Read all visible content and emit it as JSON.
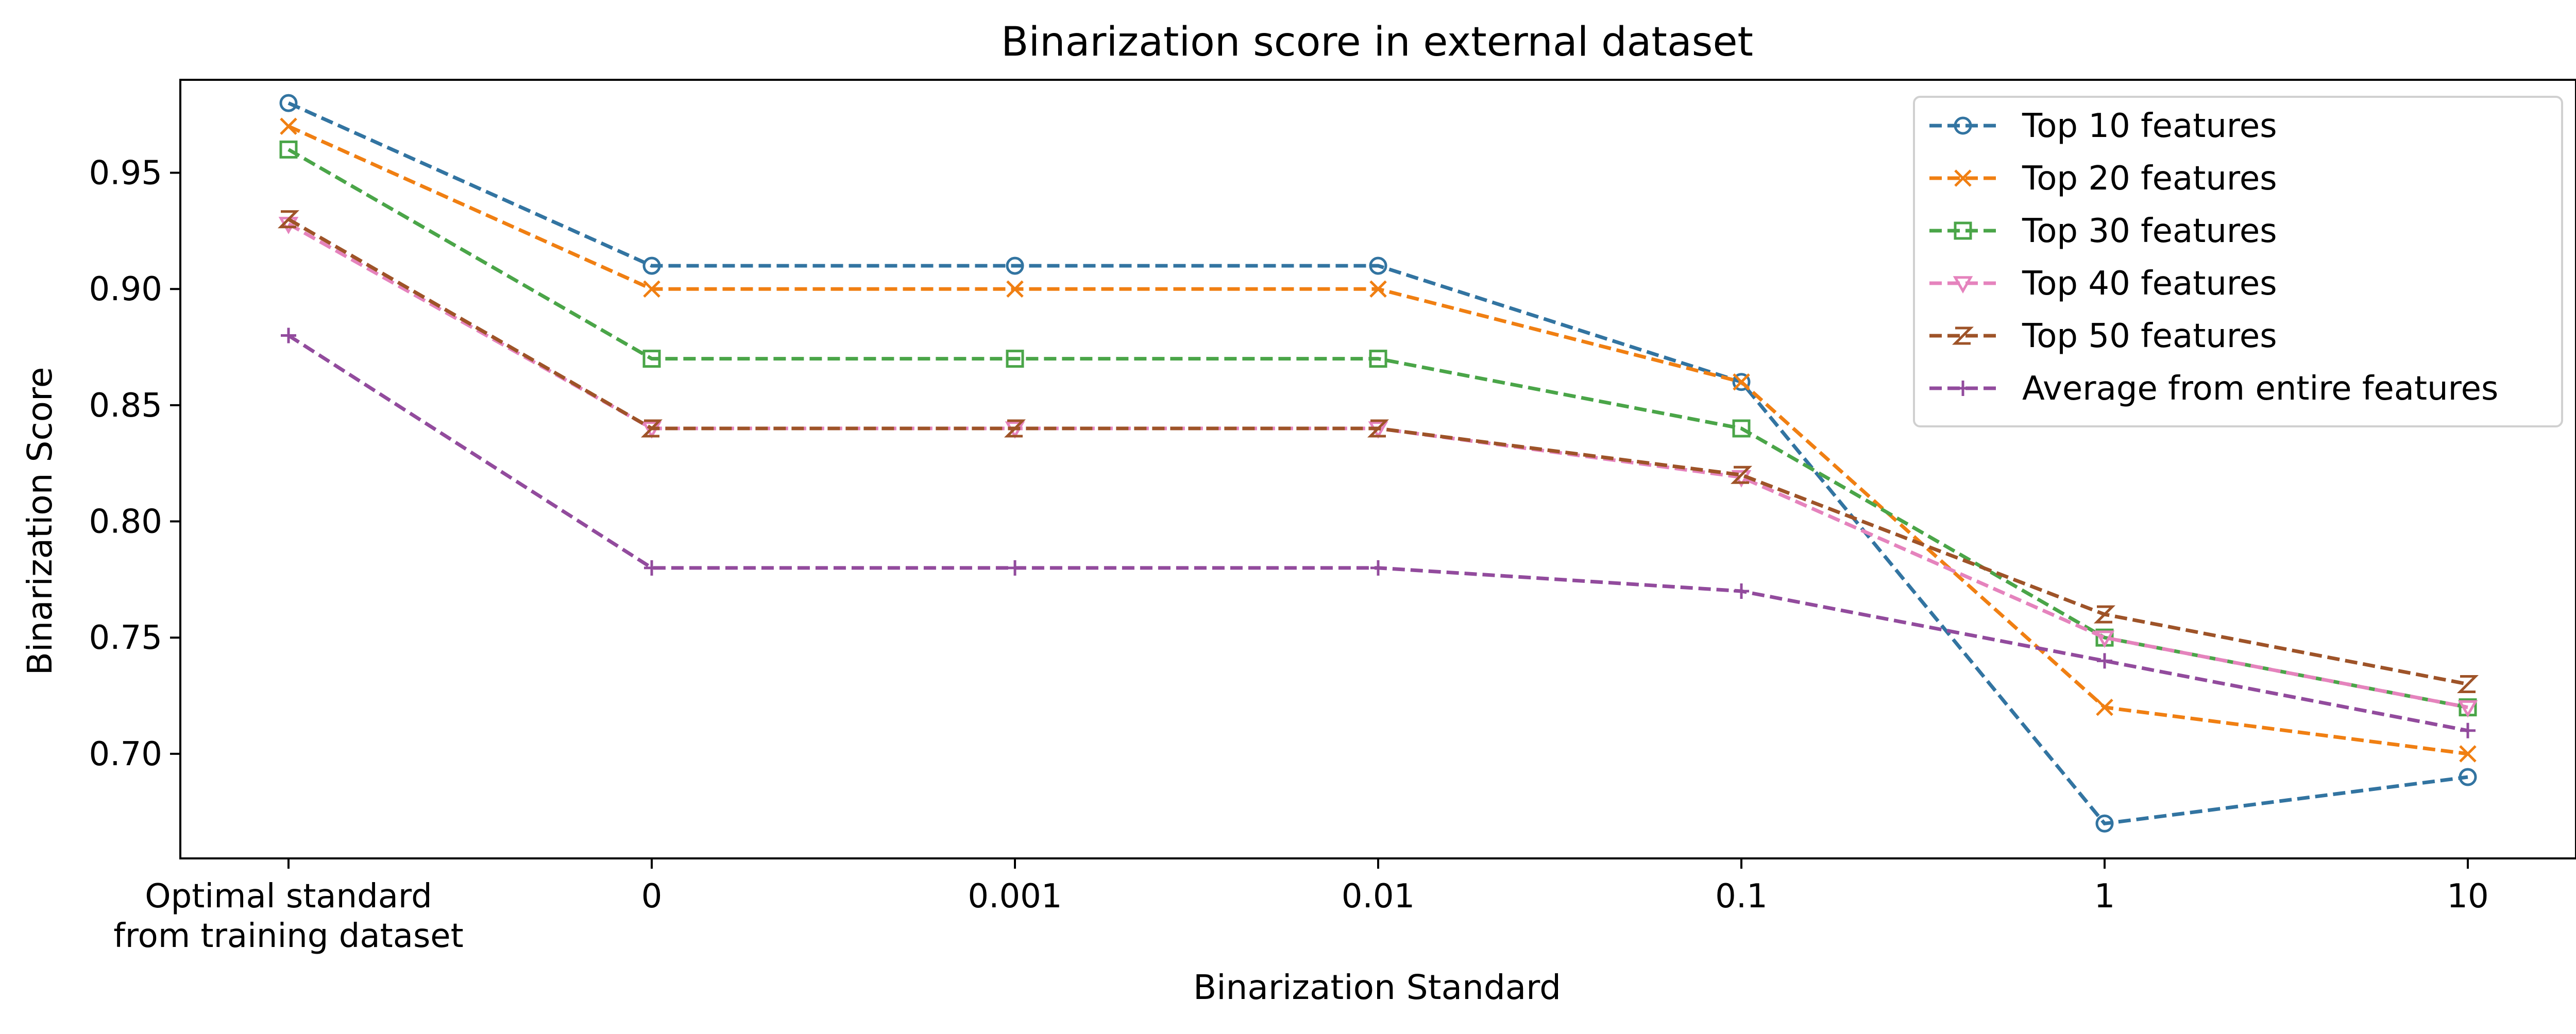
{
  "chart_data": {
    "type": "line",
    "title": "Binarization score in external dataset",
    "xlabel": "Binarization Standard",
    "ylabel": "Binarization Score",
    "categories": [
      "Optimal standard\nfrom training dataset",
      "0",
      "0.001",
      "0.01",
      "0.1",
      "1",
      "10"
    ],
    "ylim": [
      0.655,
      0.99
    ],
    "yticks": [
      0.7,
      0.75,
      0.8,
      0.85,
      0.9,
      0.95
    ],
    "ytick_labels": [
      "0.70",
      "0.75",
      "0.80",
      "0.85",
      "0.90",
      "0.95"
    ],
    "grid": false,
    "legend_position": "top-right",
    "series": [
      {
        "name": "Top 10 features",
        "color": "#3274a1",
        "marker": "circle",
        "values": [
          0.98,
          0.91,
          0.91,
          0.91,
          0.86,
          0.67,
          0.69
        ]
      },
      {
        "name": "Top 20 features",
        "color": "#f07f12",
        "marker": "x",
        "values": [
          0.97,
          0.9,
          0.9,
          0.9,
          0.86,
          0.72,
          0.7
        ]
      },
      {
        "name": "Top 30 features",
        "color": "#4aa548",
        "marker": "square",
        "values": [
          0.96,
          0.87,
          0.87,
          0.87,
          0.84,
          0.75,
          0.72
        ]
      },
      {
        "name": "Top 40 features",
        "color": "#e583bd",
        "marker": "triangle-down",
        "values": [
          0.928,
          0.84,
          0.84,
          0.84,
          0.819,
          0.75,
          0.72
        ]
      },
      {
        "name": "Top 50 features",
        "color": "#9e5328",
        "marker": "z",
        "values": [
          0.93,
          0.84,
          0.84,
          0.84,
          0.82,
          0.76,
          0.73
        ]
      },
      {
        "name": "Average from entire features",
        "color": "#924b9d",
        "marker": "plus",
        "values": [
          0.88,
          0.78,
          0.78,
          0.78,
          0.77,
          0.74,
          0.71
        ]
      }
    ]
  }
}
